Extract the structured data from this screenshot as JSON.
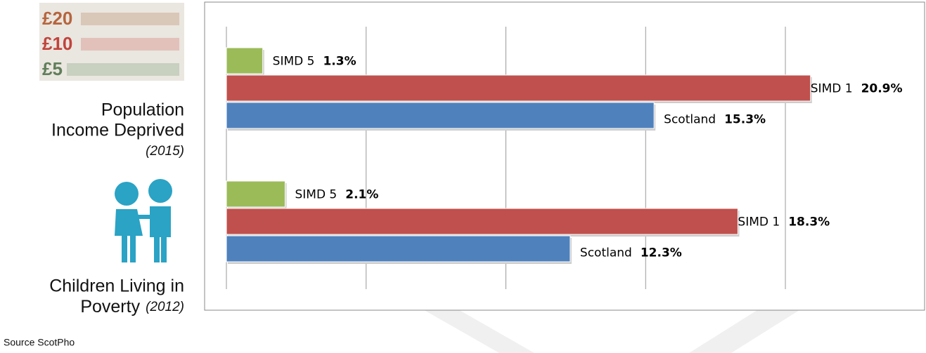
{
  "chart_data": {
    "type": "barh",
    "categories": [
      [
        "Population",
        "Income Deprived"
      ],
      [
        "Children Living in",
        "Poverty"
      ]
    ],
    "category_years": [
      "(2015)",
      "(2012)"
    ],
    "series": [
      {
        "name": "Scotland",
        "color": "#4f81bd",
        "values": [
          15.3,
          12.3
        ],
        "value_labels": [
          "15.3%",
          "12.3%"
        ]
      },
      {
        "name": "SIMD 1",
        "color": "#c0504d",
        "values": [
          20.9,
          18.3
        ],
        "value_labels": [
          "20.9%",
          "18.3%"
        ]
      },
      {
        "name": "SIMD 5",
        "color": "#9bbb59",
        "values": [
          1.3,
          2.1
        ],
        "value_labels": [
          "1.3%",
          "2.1%"
        ]
      }
    ],
    "xlim": [
      0,
      20
    ],
    "xticks": [
      0,
      5,
      10,
      15,
      20
    ],
    "grid": true,
    "source": "Source ScotPho"
  }
}
